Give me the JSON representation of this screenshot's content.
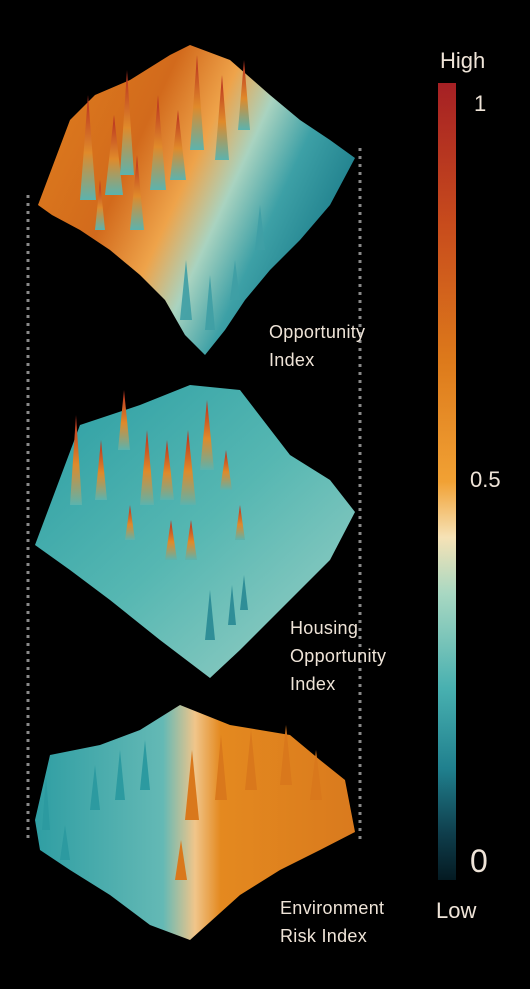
{
  "layers": [
    {
      "id": "opportunity",
      "label_lines": [
        "Opportunity",
        "Index"
      ]
    },
    {
      "id": "housing",
      "label_lines": [
        "Housing",
        "Opportunity",
        "Index"
      ]
    },
    {
      "id": "environment",
      "label_lines": [
        "Environment",
        "Risk Index"
      ]
    }
  ],
  "colorbar": {
    "high_label": "High",
    "low_label": "Low",
    "ticks": {
      "top": "1",
      "mid": "0.5",
      "bottom": "0"
    },
    "colors": [
      "#a52024",
      "#c84c1c",
      "#dd7a1b",
      "#f1a134",
      "#f6e2b6",
      "#a9d8c2",
      "#48b0b0",
      "#20808e",
      "#0f3f4d",
      "#041a22"
    ]
  }
}
